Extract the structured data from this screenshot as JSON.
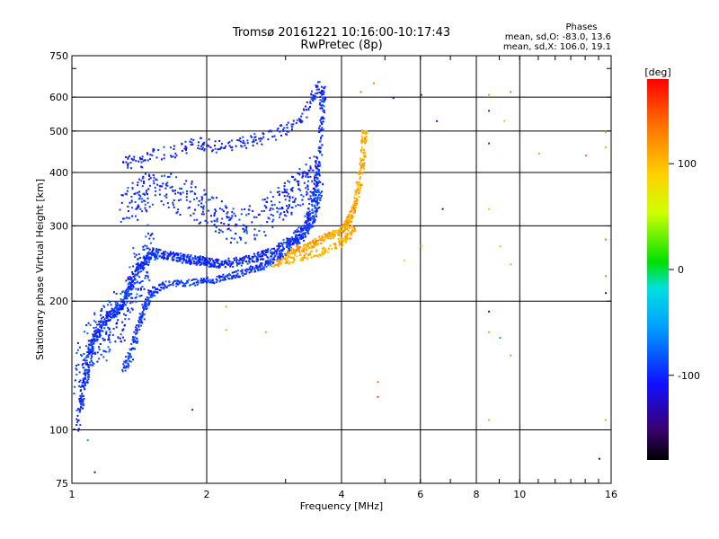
{
  "header": {
    "title": "Tromsø 20161221 10:16:00-10:17:43",
    "subtitle": "RwPretec (8p)",
    "phase_title": "Phases",
    "phase_line1": "mean, sd,O: -83.0, 13.6",
    "phase_line2": "mean, sd,X: 106.0, 19.1"
  },
  "chart_data": {
    "type": "scatter",
    "xlabel": "Frequency [MHz]",
    "ylabel": "Stationary phase Virtual Height [km]",
    "x_scale": "log",
    "y_scale": "log",
    "xlim": [
      1,
      16
    ],
    "ylim": [
      75,
      750
    ],
    "x_ticks": [
      1,
      2,
      4,
      6,
      8,
      10,
      16
    ],
    "x_tick_labels": [
      "1",
      "2",
      "4",
      "6",
      "8",
      "10",
      "16"
    ],
    "y_ticks": [
      75,
      100,
      200,
      300,
      400,
      500,
      600,
      750
    ],
    "y_tick_labels": [
      "75",
      "100",
      "200",
      "300",
      "400",
      "500",
      "600",
      "750"
    ],
    "grid": true,
    "colorbar": {
      "label": "[deg]",
      "range": [
        -180,
        180
      ],
      "ticks": [
        100,
        0,
        -100
      ],
      "tick_labels": [
        "100",
        "0",
        "-100"
      ]
    },
    "o_trace": [
      [
        1.02,
        100
      ],
      [
        1.05,
        120
      ],
      [
        1.08,
        140
      ],
      [
        1.1,
        160
      ],
      [
        1.15,
        175
      ],
      [
        1.2,
        185
      ],
      [
        1.25,
        190
      ],
      [
        1.3,
        200
      ],
      [
        1.35,
        220
      ],
      [
        1.4,
        240
      ],
      [
        1.45,
        250
      ],
      [
        1.5,
        260
      ],
      [
        1.6,
        258
      ],
      [
        1.7,
        255
      ],
      [
        1.8,
        252
      ],
      [
        1.9,
        250
      ],
      [
        2.0,
        248
      ],
      [
        2.1,
        246
      ],
      [
        2.3,
        248
      ],
      [
        2.5,
        252
      ],
      [
        2.7,
        258
      ],
      [
        2.9,
        268
      ],
      [
        3.1,
        280
      ],
      [
        3.3,
        300
      ],
      [
        3.4,
        330
      ],
      [
        3.5,
        380
      ],
      [
        3.55,
        450
      ],
      [
        3.6,
        550
      ],
      [
        3.63,
        650
      ]
    ],
    "o_trace_lower": [
      [
        1.3,
        140
      ],
      [
        1.35,
        150
      ],
      [
        1.4,
        175
      ],
      [
        1.45,
        195
      ],
      [
        1.5,
        210
      ],
      [
        1.6,
        220
      ],
      [
        1.8,
        222
      ],
      [
        2.0,
        224
      ],
      [
        2.2,
        228
      ],
      [
        2.4,
        235
      ],
      [
        2.6,
        240
      ],
      [
        2.8,
        250
      ],
      [
        3.0,
        262
      ],
      [
        3.2,
        278
      ],
      [
        3.4,
        300
      ],
      [
        3.5,
        330
      ],
      [
        3.58,
        380
      ]
    ],
    "o_upper_band": [
      [
        1.3,
        430
      ],
      [
        1.4,
        420
      ],
      [
        1.5,
        440
      ],
      [
        1.7,
        450
      ],
      [
        1.9,
        470
      ],
      [
        2.0,
        465
      ],
      [
        2.2,
        460
      ],
      [
        2.4,
        470
      ],
      [
        2.6,
        480
      ],
      [
        2.9,
        500
      ],
      [
        3.1,
        520
      ],
      [
        3.3,
        560
      ],
      [
        3.45,
        610
      ],
      [
        3.55,
        640
      ]
    ],
    "o_mid_band": [
      [
        1.3,
        330
      ],
      [
        1.4,
        350
      ],
      [
        1.5,
        370
      ],
      [
        1.7,
        360
      ],
      [
        1.9,
        340
      ],
      [
        2.1,
        320
      ],
      [
        2.3,
        300
      ],
      [
        2.6,
        310
      ],
      [
        2.9,
        340
      ],
      [
        3.1,
        360
      ],
      [
        3.3,
        380
      ],
      [
        3.5,
        410
      ]
    ],
    "x_trace": [
      [
        3.0,
        260
      ],
      [
        3.2,
        266
      ],
      [
        3.4,
        272
      ],
      [
        3.6,
        280
      ],
      [
        3.8,
        288
      ],
      [
        4.0,
        295
      ],
      [
        4.1,
        305
      ],
      [
        4.2,
        320
      ],
      [
        4.3,
        350
      ],
      [
        4.4,
        400
      ],
      [
        4.45,
        450
      ],
      [
        4.5,
        520
      ]
    ],
    "x_trace_lower": [
      [
        2.8,
        245
      ],
      [
        3.0,
        250
      ],
      [
        3.3,
        255
      ],
      [
        3.6,
        262
      ],
      [
        3.9,
        272
      ],
      [
        4.1,
        285
      ],
      [
        4.25,
        300
      ]
    ],
    "scattered_points": [
      [
        4.7,
        650,
        130
      ],
      [
        4.4,
        620,
        140
      ],
      [
        5.2,
        600,
        -120
      ],
      [
        6.0,
        610,
        -150
      ],
      [
        6.5,
        530,
        -110
      ],
      [
        8.5,
        610,
        110
      ],
      [
        9.5,
        620,
        130
      ],
      [
        8.5,
        560,
        -100
      ],
      [
        8.5,
        470,
        -100
      ],
      [
        9.2,
        530,
        100
      ],
      [
        11,
        445,
        110
      ],
      [
        14,
        440,
        140
      ],
      [
        15.5,
        500,
        130
      ],
      [
        15.5,
        460,
        110
      ],
      [
        6.7,
        330,
        -120
      ],
      [
        8.5,
        330,
        100
      ],
      [
        9.0,
        270,
        100
      ],
      [
        9.5,
        245,
        30
      ],
      [
        6.0,
        270,
        100
      ],
      [
        5.5,
        250,
        90
      ],
      [
        8.5,
        190,
        -120
      ],
      [
        8.5,
        170,
        30
      ],
      [
        9.0,
        165,
        0
      ],
      [
        9.5,
        150,
        20
      ],
      [
        4.8,
        130,
        140
      ],
      [
        4.8,
        120,
        150
      ],
      [
        8.5,
        106,
        110
      ],
      [
        15.5,
        106,
        110
      ],
      [
        15.0,
        86,
        -130
      ],
      [
        15.5,
        280,
        130
      ],
      [
        15.5,
        230,
        130
      ],
      [
        15.5,
        210,
        -130
      ],
      [
        1.08,
        95,
        -60
      ],
      [
        1.12,
        80,
        -140
      ],
      [
        2.2,
        172,
        110
      ],
      [
        2.7,
        170,
        110
      ],
      [
        2.2,
        195,
        110
      ],
      [
        1.85,
        112,
        -100
      ],
      [
        2.8,
        330,
        -100
      ],
      [
        2.6,
        320,
        -110
      ]
    ]
  }
}
